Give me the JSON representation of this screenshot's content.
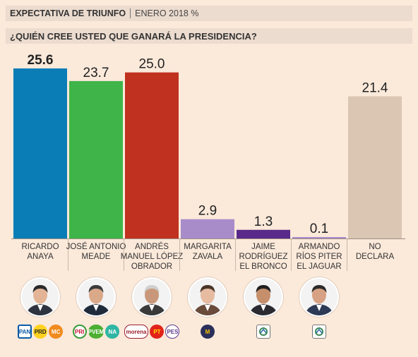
{
  "header": {
    "title": "EXPECTATIVA DE TRIUNFO",
    "subtitle": "ENERO 2018 %"
  },
  "question": "¿QUIÉN CREE USTED QUE GANARÁ LA PRESIDENCIA?",
  "chart_data": {
    "type": "bar",
    "categories": [
      [
        "RICARDO",
        "ANAYA"
      ],
      [
        "JOSÉ ANTONIO",
        "MEADE"
      ],
      [
        "ANDRÉS",
        "MANUEL LÓPEZ",
        "OBRADOR"
      ],
      [
        "MARGARITA",
        "ZAVALA"
      ],
      [
        "JAIME",
        "RODRÍGUEZ",
        "EL BRONCO"
      ],
      [
        "ARMANDO",
        "RÍOS PITER",
        "EL JAGUAR"
      ],
      [
        "NO",
        "DECLARA"
      ]
    ],
    "values": [
      25.6,
      23.7,
      25.0,
      2.9,
      1.3,
      0.1,
      21.4
    ],
    "value_labels": [
      "25.6",
      "23.7",
      "25.0",
      "2.9",
      "1.3",
      "0.1",
      "21.4"
    ],
    "colors": [
      "#0a7db6",
      "#3fb449",
      "#c0311f",
      "#a88cc9",
      "#5a2a8a",
      "#a88cc9",
      "#dbc6b4"
    ],
    "highlight_index": 0,
    "ylim": [
      0,
      25.6
    ],
    "grid": false,
    "legend": "none"
  },
  "parties": [
    [
      "PAN",
      "PRD",
      "MC"
    ],
    [
      "PRI",
      "PVEM",
      "NA"
    ],
    [
      "morena",
      "PT",
      "PES"
    ],
    [
      "M"
    ],
    [
      "IND"
    ],
    [
      "IND"
    ]
  ],
  "icons": {
    "candidate_photo": "person-portrait-icon",
    "party_logo": "party-logo-icon"
  }
}
